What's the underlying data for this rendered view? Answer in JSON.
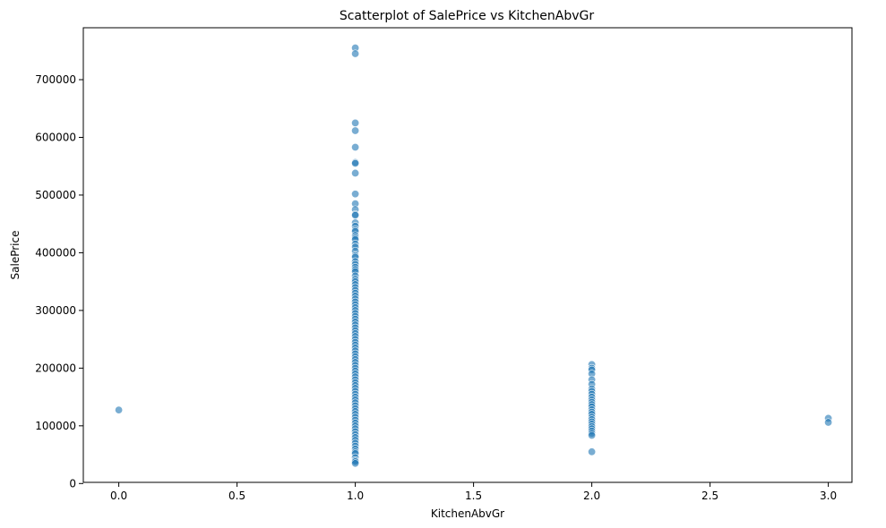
{
  "chart_data": {
    "type": "scatter",
    "title": "Scatterplot of SalePrice vs KitchenAbvGr",
    "xlabel": "KitchenAbvGr",
    "ylabel": "SalePrice",
    "xlim": [
      -0.15,
      3.1
    ],
    "ylim": [
      2000,
      790000
    ],
    "xticks": [
      0.0,
      0.5,
      1.0,
      1.5,
      2.0,
      2.5,
      3.0
    ],
    "xtick_labels": [
      "0.0",
      "0.5",
      "1.0",
      "1.5",
      "2.0",
      "2.5",
      "3.0"
    ],
    "yticks": [
      0,
      100000,
      200000,
      300000,
      400000,
      500000,
      600000,
      700000
    ],
    "ytick_labels": [
      "0",
      "100000",
      "200000",
      "300000",
      "400000",
      "500000",
      "600000",
      "700000"
    ],
    "grid": false,
    "marker_color": "#1f77b4",
    "marker_alpha": 0.6,
    "points": [
      {
        "x": 0,
        "y": 127500
      },
      {
        "x": 1,
        "y": 755000
      },
      {
        "x": 1,
        "y": 745000
      },
      {
        "x": 1,
        "y": 625000
      },
      {
        "x": 1,
        "y": 611657
      },
      {
        "x": 1,
        "y": 582933
      },
      {
        "x": 1,
        "y": 556581
      },
      {
        "x": 1,
        "y": 555000
      },
      {
        "x": 1,
        "y": 538000
      },
      {
        "x": 1,
        "y": 501837
      },
      {
        "x": 1,
        "y": 485000
      },
      {
        "x": 1,
        "y": 475000
      },
      {
        "x": 1,
        "y": 466500
      },
      {
        "x": 1,
        "y": 465000
      },
      {
        "x": 1,
        "y": 451950
      },
      {
        "x": 1,
        "y": 446261
      },
      {
        "x": 1,
        "y": 440000
      },
      {
        "x": 1,
        "y": 437154
      },
      {
        "x": 1,
        "y": 430000
      },
      {
        "x": 1,
        "y": 426000
      },
      {
        "x": 1,
        "y": 423000
      },
      {
        "x": 1,
        "y": 415298
      },
      {
        "x": 1,
        "y": 410000
      },
      {
        "x": 1,
        "y": 402861
      },
      {
        "x": 1,
        "y": 395000
      },
      {
        "x": 1,
        "y": 392500
      },
      {
        "x": 1,
        "y": 385000
      },
      {
        "x": 1,
        "y": 380000
      },
      {
        "x": 1,
        "y": 375000
      },
      {
        "x": 1,
        "y": 370878
      },
      {
        "x": 1,
        "y": 367294
      },
      {
        "x": 1,
        "y": 360000
      },
      {
        "x": 1,
        "y": 354000
      },
      {
        "x": 1,
        "y": 350000
      },
      {
        "x": 1,
        "y": 345000
      },
      {
        "x": 1,
        "y": 340000
      },
      {
        "x": 1,
        "y": 335000
      },
      {
        "x": 1,
        "y": 330000
      },
      {
        "x": 1,
        "y": 325000
      },
      {
        "x": 1,
        "y": 320000
      },
      {
        "x": 1,
        "y": 315000
      },
      {
        "x": 1,
        "y": 310000
      },
      {
        "x": 1,
        "y": 305000
      },
      {
        "x": 1,
        "y": 300000
      },
      {
        "x": 1,
        "y": 295000
      },
      {
        "x": 1,
        "y": 290000
      },
      {
        "x": 1,
        "y": 285000
      },
      {
        "x": 1,
        "y": 280000
      },
      {
        "x": 1,
        "y": 275000
      },
      {
        "x": 1,
        "y": 270000
      },
      {
        "x": 1,
        "y": 265000
      },
      {
        "x": 1,
        "y": 260000
      },
      {
        "x": 1,
        "y": 255000
      },
      {
        "x": 1,
        "y": 250000
      },
      {
        "x": 1,
        "y": 245000
      },
      {
        "x": 1,
        "y": 240000
      },
      {
        "x": 1,
        "y": 235000
      },
      {
        "x": 1,
        "y": 230000
      },
      {
        "x": 1,
        "y": 225000
      },
      {
        "x": 1,
        "y": 220000
      },
      {
        "x": 1,
        "y": 215000
      },
      {
        "x": 1,
        "y": 210000
      },
      {
        "x": 1,
        "y": 205000
      },
      {
        "x": 1,
        "y": 200000
      },
      {
        "x": 1,
        "y": 195000
      },
      {
        "x": 1,
        "y": 190000
      },
      {
        "x": 1,
        "y": 185000
      },
      {
        "x": 1,
        "y": 180000
      },
      {
        "x": 1,
        "y": 175000
      },
      {
        "x": 1,
        "y": 170000
      },
      {
        "x": 1,
        "y": 165000
      },
      {
        "x": 1,
        "y": 160000
      },
      {
        "x": 1,
        "y": 155000
      },
      {
        "x": 1,
        "y": 150000
      },
      {
        "x": 1,
        "y": 145000
      },
      {
        "x": 1,
        "y": 140000
      },
      {
        "x": 1,
        "y": 135000
      },
      {
        "x": 1,
        "y": 130000
      },
      {
        "x": 1,
        "y": 125000
      },
      {
        "x": 1,
        "y": 120000
      },
      {
        "x": 1,
        "y": 115000
      },
      {
        "x": 1,
        "y": 110000
      },
      {
        "x": 1,
        "y": 105000
      },
      {
        "x": 1,
        "y": 100000
      },
      {
        "x": 1,
        "y": 95000
      },
      {
        "x": 1,
        "y": 90000
      },
      {
        "x": 1,
        "y": 85000
      },
      {
        "x": 1,
        "y": 80000
      },
      {
        "x": 1,
        "y": 75000
      },
      {
        "x": 1,
        "y": 70000
      },
      {
        "x": 1,
        "y": 65000
      },
      {
        "x": 1,
        "y": 60000
      },
      {
        "x": 1,
        "y": 55000
      },
      {
        "x": 1,
        "y": 52000
      },
      {
        "x": 1,
        "y": 45000
      },
      {
        "x": 1,
        "y": 40000
      },
      {
        "x": 1,
        "y": 37900
      },
      {
        "x": 1,
        "y": 34900
      },
      {
        "x": 2,
        "y": 206300
      },
      {
        "x": 2,
        "y": 200000
      },
      {
        "x": 2,
        "y": 197000
      },
      {
        "x": 2,
        "y": 190000
      },
      {
        "x": 2,
        "y": 180000
      },
      {
        "x": 2,
        "y": 172000
      },
      {
        "x": 2,
        "y": 164000
      },
      {
        "x": 2,
        "y": 160000
      },
      {
        "x": 2,
        "y": 155000
      },
      {
        "x": 2,
        "y": 150000
      },
      {
        "x": 2,
        "y": 145000
      },
      {
        "x": 2,
        "y": 141000
      },
      {
        "x": 2,
        "y": 137000
      },
      {
        "x": 2,
        "y": 133000
      },
      {
        "x": 2,
        "y": 128000
      },
      {
        "x": 2,
        "y": 124000
      },
      {
        "x": 2,
        "y": 120000
      },
      {
        "x": 2,
        "y": 115000
      },
      {
        "x": 2,
        "y": 111000
      },
      {
        "x": 2,
        "y": 107000
      },
      {
        "x": 2,
        "y": 103000
      },
      {
        "x": 2,
        "y": 99000
      },
      {
        "x": 2,
        "y": 95000
      },
      {
        "x": 2,
        "y": 91000
      },
      {
        "x": 2,
        "y": 87000
      },
      {
        "x": 2,
        "y": 83500
      },
      {
        "x": 2,
        "y": 55000
      },
      {
        "x": 3,
        "y": 113000
      },
      {
        "x": 3,
        "y": 106000
      }
    ]
  }
}
